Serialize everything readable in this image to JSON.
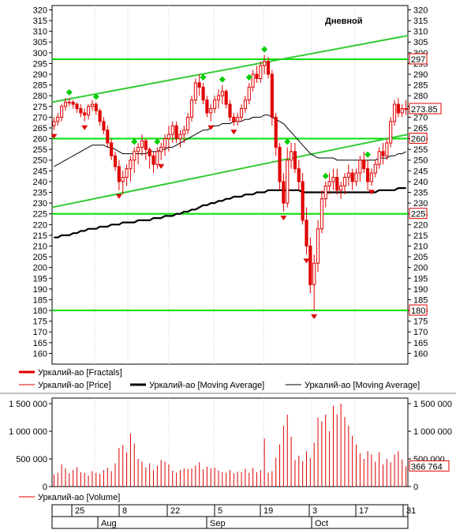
{
  "chart_data": [
    {
      "type": "candlestick",
      "title": "Дневной",
      "ylim": [
        155,
        322
      ],
      "y_ticks": [
        160,
        165,
        170,
        175,
        180,
        185,
        190,
        195,
        200,
        205,
        210,
        215,
        220,
        225,
        230,
        235,
        240,
        245,
        250,
        255,
        260,
        265,
        270,
        275,
        280,
        285,
        290,
        295,
        300,
        305,
        310,
        315,
        320
      ],
      "last_price": 273.85,
      "horizontal_levels": [
        297,
        260,
        225,
        180
      ],
      "trendlines": [
        {
          "from": [
            0,
            277
          ],
          "to": [
            112,
            308
          ]
        },
        {
          "from": [
            0,
            228
          ],
          "to": [
            112,
            262
          ]
        }
      ],
      "ohlc": [
        [
          266,
          270,
          264,
          268
        ],
        [
          268,
          272,
          266,
          270
        ],
        [
          270,
          276,
          268,
          275
        ],
        [
          275,
          279,
          273,
          277
        ],
        [
          277,
          279,
          275,
          277
        ],
        [
          277,
          278,
          274,
          276
        ],
        [
          276,
          277,
          272,
          274
        ],
        [
          274,
          276,
          270,
          272
        ],
        [
          272,
          274,
          268,
          271
        ],
        [
          271,
          276,
          269,
          275
        ],
        [
          275,
          278,
          273,
          276
        ],
        [
          276,
          277,
          271,
          273
        ],
        [
          273,
          274,
          266,
          268
        ],
        [
          268,
          270,
          262,
          264
        ],
        [
          264,
          266,
          256,
          258
        ],
        [
          258,
          260,
          250,
          252
        ],
        [
          252,
          254,
          245,
          247
        ],
        [
          247,
          250,
          236,
          240
        ],
        [
          240,
          245,
          234,
          242
        ],
        [
          242,
          248,
          238,
          246
        ],
        [
          246,
          252,
          240,
          250
        ],
        [
          250,
          256,
          244,
          254
        ],
        [
          254,
          258,
          248,
          256
        ],
        [
          256,
          262,
          252,
          259
        ],
        [
          259,
          260,
          250,
          255
        ],
        [
          255,
          256,
          246,
          252
        ],
        [
          252,
          254,
          244,
          248
        ],
        [
          248,
          256,
          246,
          254
        ],
        [
          254,
          258,
          250,
          256
        ],
        [
          256,
          262,
          252,
          260
        ],
        [
          260,
          266,
          254,
          262
        ],
        [
          262,
          268,
          258,
          266
        ],
        [
          266,
          268,
          258,
          260
        ],
        [
          260,
          264,
          256,
          262
        ],
        [
          262,
          266,
          258,
          264
        ],
        [
          264,
          272,
          262,
          270
        ],
        [
          270,
          280,
          268,
          278
        ],
        [
          278,
          288,
          276,
          286
        ],
        [
          286,
          290,
          280,
          284
        ],
        [
          284,
          286,
          276,
          278
        ],
        [
          278,
          280,
          270,
          272
        ],
        [
          272,
          276,
          268,
          274
        ],
        [
          274,
          280,
          272,
          278
        ],
        [
          278,
          283,
          274,
          280
        ],
        [
          280,
          285,
          276,
          282
        ],
        [
          282,
          283,
          274,
          276
        ],
        [
          276,
          278,
          268,
          270
        ],
        [
          270,
          272,
          266,
          268
        ],
        [
          268,
          272,
          266,
          270
        ],
        [
          270,
          276,
          268,
          274
        ],
        [
          274,
          280,
          272,
          278
        ],
        [
          278,
          286,
          276,
          284
        ],
        [
          284,
          292,
          282,
          290
        ],
        [
          290,
          294,
          286,
          288
        ],
        [
          288,
          296,
          286,
          294
        ],
        [
          294,
          299,
          290,
          296
        ],
        [
          296,
          298,
          288,
          290
        ],
        [
          290,
          292,
          266,
          270
        ],
        [
          270,
          272,
          252,
          256
        ],
        [
          256,
          258,
          236,
          240
        ],
        [
          240,
          244,
          226,
          230
        ],
        [
          230,
          256,
          228,
          250
        ],
        [
          250,
          258,
          246,
          254
        ],
        [
          254,
          258,
          244,
          246
        ],
        [
          246,
          250,
          236,
          240
        ],
        [
          240,
          244,
          220,
          222
        ],
        [
          222,
          228,
          206,
          210
        ],
        [
          210,
          214,
          188,
          192
        ],
        [
          192,
          206,
          180,
          202
        ],
        [
          202,
          222,
          198,
          218
        ],
        [
          218,
          236,
          216,
          232
        ],
        [
          232,
          240,
          228,
          238
        ],
        [
          238,
          244,
          234,
          240
        ],
        [
          240,
          246,
          236,
          242
        ],
        [
          242,
          246,
          234,
          236
        ],
        [
          236,
          240,
          232,
          238
        ],
        [
          238,
          244,
          234,
          242
        ],
        [
          242,
          248,
          238,
          244
        ],
        [
          244,
          246,
          236,
          240
        ],
        [
          240,
          246,
          238,
          244
        ],
        [
          244,
          252,
          240,
          250
        ],
        [
          250,
          254,
          244,
          246
        ],
        [
          246,
          250,
          236,
          240
        ],
        [
          240,
          246,
          238,
          244
        ],
        [
          244,
          250,
          242,
          248
        ],
        [
          248,
          256,
          246,
          254
        ],
        [
          254,
          258,
          248,
          252
        ],
        [
          252,
          260,
          250,
          258
        ],
        [
          258,
          270,
          256,
          268
        ],
        [
          268,
          278,
          266,
          276
        ],
        [
          276,
          279,
          270,
          272
        ],
        [
          272,
          276,
          270,
          274
        ],
        [
          274,
          278,
          271,
          273.85
        ]
      ],
      "ma_thin": [
        247,
        248,
        249,
        250,
        251,
        252,
        253,
        254,
        255,
        256,
        257,
        257,
        257,
        257,
        256,
        256,
        255,
        254,
        253,
        253,
        253,
        253,
        253,
        253,
        253,
        254,
        254,
        254,
        255,
        255,
        256,
        256,
        257,
        258,
        259,
        260,
        261,
        262,
        263,
        264,
        264,
        265,
        266,
        266,
        267,
        267,
        267,
        268,
        268,
        268,
        269,
        269,
        270,
        270,
        270,
        271,
        271,
        270,
        269,
        268,
        267,
        265,
        263,
        261,
        259,
        257,
        255,
        253,
        252,
        251,
        251,
        251,
        251,
        251,
        250,
        250,
        250,
        250,
        250,
        250,
        250,
        250,
        250,
        250,
        250,
        251,
        251,
        251,
        252,
        252,
        253,
        253,
        254
      ],
      "ma_thick": [
        214,
        214,
        215,
        215,
        215,
        216,
        216,
        217,
        217,
        218,
        218,
        218,
        219,
        219,
        219,
        220,
        220,
        220,
        221,
        221,
        221,
        221,
        222,
        222,
        222,
        222,
        223,
        223,
        223,
        224,
        224,
        224,
        225,
        225,
        226,
        226,
        227,
        227,
        228,
        229,
        229,
        230,
        230,
        231,
        231,
        232,
        232,
        233,
        233,
        233,
        234,
        234,
        234,
        235,
        235,
        235,
        236,
        236,
        236,
        236,
        236,
        236,
        236,
        236,
        236,
        235,
        235,
        235,
        235,
        235,
        235,
        235,
        235,
        235,
        235,
        235,
        235,
        235,
        235,
        235,
        235,
        235,
        235,
        235,
        235,
        236,
        236,
        236,
        236,
        236,
        237,
        237,
        237
      ],
      "fractals_up": [
        4,
        11,
        21,
        27,
        39,
        44,
        51,
        55,
        61,
        71,
        82
      ],
      "fractals_down": [
        0,
        8,
        17,
        28,
        41,
        47,
        60,
        66,
        68,
        83
      ]
    },
    {
      "type": "bar",
      "title": "Volume",
      "ylim": [
        0,
        1600000
      ],
      "y_ticks": [
        "0",
        "500 000",
        "1 000 000",
        "1 500 000"
      ],
      "last_value": "366 764",
      "values": [
        220000,
        250000,
        400000,
        330000,
        240000,
        300000,
        350000,
        260000,
        250000,
        200000,
        280000,
        250000,
        230000,
        300000,
        340000,
        280000,
        420000,
        700000,
        750000,
        620000,
        960000,
        780000,
        500000,
        450000,
        350000,
        420000,
        300000,
        380000,
        480000,
        450000,
        400000,
        290000,
        250000,
        300000,
        330000,
        320000,
        330000,
        380000,
        440000,
        310000,
        360000,
        330000,
        340000,
        290000,
        260000,
        250000,
        300000,
        240000,
        270000,
        260000,
        320000,
        250000,
        340000,
        260000,
        300000,
        870000,
        250000,
        280000,
        520000,
        760000,
        1100000,
        1300000,
        900000,
        480000,
        560000,
        460000,
        640000,
        520000,
        790000,
        1250000,
        1180000,
        1300000,
        1000000,
        1460000,
        1310000,
        1500000,
        1260000,
        1100000,
        920000,
        760000,
        600000,
        500000,
        640000,
        580000,
        450000,
        620000,
        400000,
        500000,
        440000,
        580000,
        640000,
        490000,
        366764
      ]
    }
  ],
  "x_axis": {
    "ticks": [
      "25",
      "8",
      "22",
      "5",
      "19",
      "3",
      "17",
      "31"
    ],
    "months": [
      "Aug",
      "Sep",
      "Oct"
    ]
  },
  "legend": {
    "fractals": "Уркалий-ао [Fractals]",
    "price": "Уркалий-ао [Price]",
    "ma_thick": "Уркалий-ао [Moving Average]",
    "ma_thin": "Уркалий-ао [Moving Average]",
    "volume": "Уркалий-ао [Volume]"
  },
  "colors": {
    "candle": "#e00000",
    "level": "#00e000",
    "trend": "#33cc33",
    "up_fractal": "#00cc00",
    "down_fractal": "#e00000",
    "ma_thick": "#000000",
    "ma_thin": "#000000",
    "volume": "#e00000"
  }
}
